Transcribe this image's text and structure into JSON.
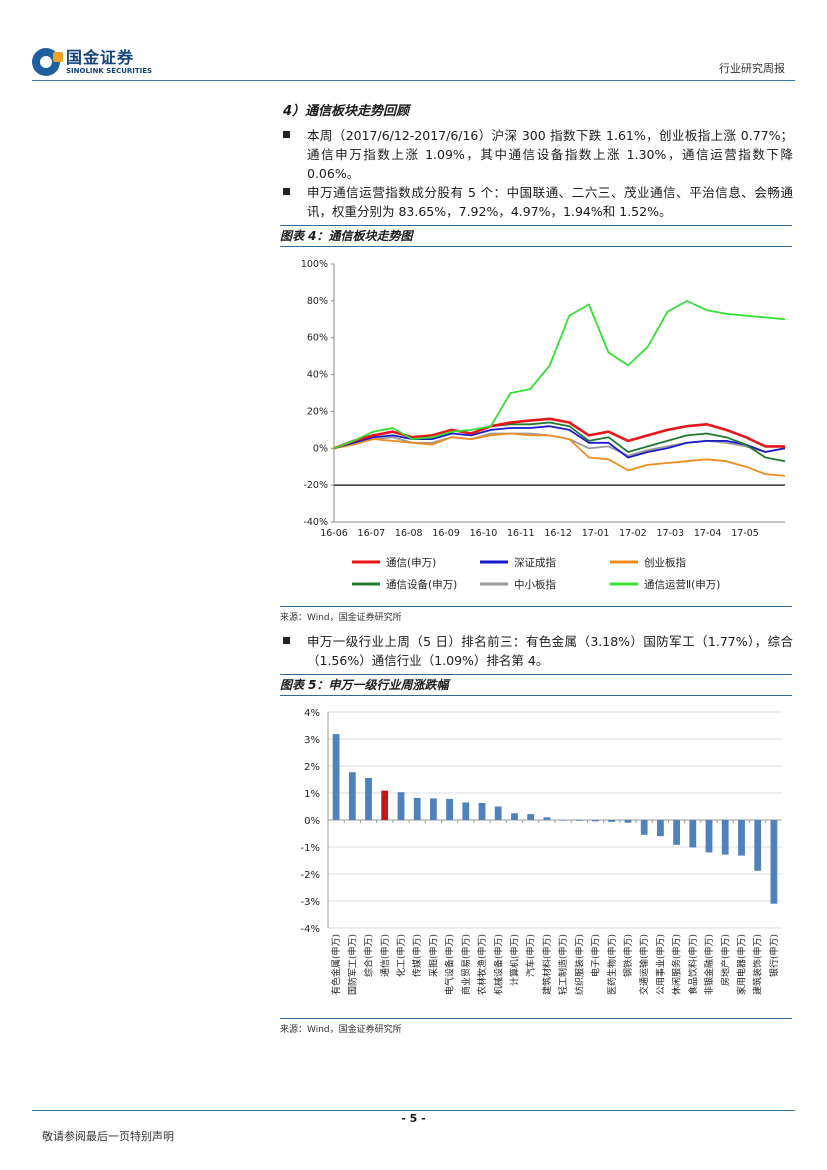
{
  "header": {
    "logo_cn": "国金证券",
    "logo_en": "SINOLINK SECURITIES",
    "report_type": "行业研究周报"
  },
  "section": {
    "title": "4）通信板块走势回顾",
    "bullet1": "本周（2017/6/12-2017/6/16）沪深 300 指数下跌 1.61%，创业板指上涨 0.77%；通信申万指数上涨 1.09%，其中通信设备指数上涨 1.30%，通信运营指数下降 0.06%。",
    "bullet2": "申万通信运营指数成分股有 5 个：中国联通、二六三、茂业通信、平治信息、会畅通讯，权重分别为 83.65%，7.92%，4.97%，1.94%和 1.52%。",
    "bullet3": "申万一级行业上周（5 日）排名前三：有色金属（3.18%）国防军工（1.77%），综合（1.56%）通信行业（1.09%）排名第 4。"
  },
  "fig4": {
    "title": "图表 4：通信板块走势图",
    "source": "来源：Wind，国金证券研究所"
  },
  "fig5": {
    "title": "图表 5：申万一级行业周涨跌幅",
    "source": "来源：Wind，国金证券研究所"
  },
  "footer": {
    "page": "- 5 -",
    "disclaimer": "敬请参阅最后一页特别声明"
  },
  "chart_data": [
    {
      "type": "line",
      "x_ticks": [
        "16-06",
        "16-07",
        "16-08",
        "16-09",
        "16-10",
        "16-11",
        "16-12",
        "17-01",
        "17-02",
        "17-03",
        "17-04",
        "17-05"
      ],
      "y_ticks": [
        "100%",
        "80%",
        "60%",
        "40%",
        "20%",
        "0%",
        "-20%",
        "-40%"
      ],
      "ylim": [
        -40,
        100
      ],
      "legend_placement": "bottom",
      "series": [
        {
          "name": "通信(申万)",
          "color": "#e8161b",
          "values": [
            0,
            4,
            7,
            9,
            6,
            7,
            10,
            8,
            12,
            14,
            15,
            16,
            14,
            7,
            9,
            4,
            7,
            10,
            12,
            13,
            10,
            6,
            1,
            1
          ]
        },
        {
          "name": "深证成指",
          "color": "#1a1acc",
          "values": [
            0,
            3,
            6,
            7,
            5,
            5,
            8,
            7,
            10,
            11,
            11,
            12,
            10,
            3,
            3,
            -5,
            -2,
            0,
            3,
            4,
            4,
            2,
            -2,
            0
          ]
        },
        {
          "name": "创业板指",
          "color": "#f08c1e",
          "values": [
            0,
            2,
            5,
            4,
            3,
            2,
            6,
            5,
            7,
            8,
            7,
            7,
            5,
            -5,
            -6,
            -12,
            -9,
            -8,
            -7,
            -6,
            -7,
            -10,
            -14,
            -15
          ]
        },
        {
          "name": "通信设备(申万)",
          "color": "#1f7a2e",
          "values": [
            0,
            4,
            7,
            9,
            6,
            7,
            10,
            8,
            12,
            13,
            13,
            14,
            12,
            4,
            6,
            -2,
            1,
            4,
            7,
            8,
            6,
            2,
            -5,
            -7
          ]
        },
        {
          "name": "中小板指",
          "color": "#9a9a9a",
          "values": [
            0,
            3,
            5,
            6,
            3,
            3,
            6,
            5,
            8,
            8,
            8,
            7,
            5,
            0,
            1,
            -4,
            -1,
            1,
            3,
            4,
            3,
            1,
            -2,
            0
          ]
        },
        {
          "name": "通信运营Ⅱ(申万)",
          "color": "#33e033",
          "values": [
            0,
            4,
            9,
            11,
            5,
            6,
            9,
            10,
            12,
            30,
            32,
            45,
            72,
            78,
            52,
            45,
            55,
            74,
            80,
            75,
            73,
            72,
            71,
            70
          ]
        }
      ],
      "baseline": {
        "value": -20,
        "color": "#333333"
      }
    },
    {
      "type": "bar",
      "categories": [
        "有色金属(申万)",
        "国防军工(申万)",
        "综合(申万)",
        "通信(申万)",
        "化工(申万)",
        "传媒(申万)",
        "采掘(申万)",
        "电气设备(申万)",
        "商业贸易(申万)",
        "农林牧渔(申万)",
        "机械设备(申万)",
        "计算机(申万)",
        "汽车(申万)",
        "建筑材料(申万)",
        "轻工制造(申万)",
        "纺织服装(申万)",
        "电子(申万)",
        "医药生物(申万)",
        "钢铁(申万)",
        "交通运输(申万)",
        "公用事业(申万)",
        "休闲服务(申万)",
        "食品饮料(申万)",
        "非银金融(申万)",
        "房地产(申万)",
        "家用电器(申万)",
        "建筑装饰(申万)",
        "银行(申万)"
      ],
      "values": [
        3.18,
        1.77,
        1.56,
        1.09,
        1.03,
        0.82,
        0.8,
        0.78,
        0.65,
        0.63,
        0.5,
        0.25,
        0.22,
        0.1,
        -0.02,
        -0.03,
        -0.05,
        -0.07,
        -0.1,
        -0.55,
        -0.6,
        -0.92,
        -1.02,
        -1.2,
        -1.28,
        -1.32,
        -1.88,
        -3.1
      ],
      "highlight_index": 3,
      "bar_color": "#4f81bd",
      "highlight_color": "#c0161c",
      "y_ticks": [
        "4%",
        "3%",
        "2%",
        "1%",
        "0%",
        "-1%",
        "-2%",
        "-3%",
        "-4%"
      ],
      "ylim": [
        -4,
        4
      ]
    }
  ]
}
